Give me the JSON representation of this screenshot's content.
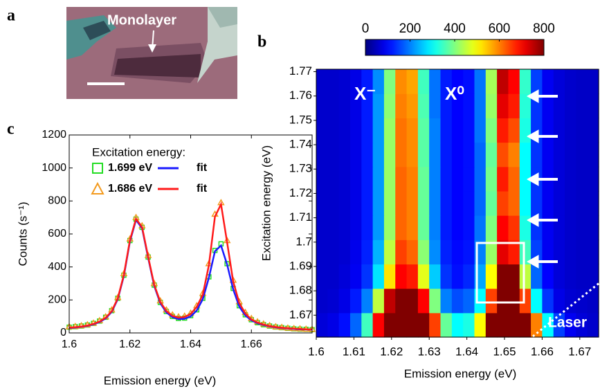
{
  "panel_labels": [
    "a",
    "b",
    "c"
  ],
  "micrograph": {
    "annotation": "Monolayer"
  },
  "chart_data": [
    {
      "type": "heatmap",
      "x_label": "Emission energy (eV)",
      "y_label": "Excitation energy (eV)",
      "xlim": [
        1.6,
        1.675
      ],
      "xticks": [
        1.6,
        1.61,
        1.62,
        1.63,
        1.64,
        1.65,
        1.66,
        1.67
      ],
      "ylim": [
        1.661,
        1.771
      ],
      "yticks": [
        1.67,
        1.68,
        1.69,
        1.7,
        1.71,
        1.72,
        1.73,
        1.74,
        1.75,
        1.76,
        1.77
      ],
      "x_edges": [
        1.6,
        1.603,
        1.606,
        1.609,
        1.612,
        1.615,
        1.618,
        1.621,
        1.624,
        1.627,
        1.63,
        1.633,
        1.636,
        1.639,
        1.642,
        1.645,
        1.648,
        1.651,
        1.654,
        1.657,
        1.66,
        1.663,
        1.666,
        1.669,
        1.672,
        1.675
      ],
      "y_edges": [
        1.661,
        1.671,
        1.681,
        1.691,
        1.701,
        1.711,
        1.721,
        1.731,
        1.741,
        1.751,
        1.761,
        1.771
      ],
      "values": [
        [
          70,
          80,
          110,
          180,
          350,
          700,
          900,
          950,
          950,
          900,
          650,
          380,
          300,
          320,
          500,
          850,
          950,
          950,
          900,
          600,
          300,
          150,
          90,
          70,
          60
        ],
        [
          60,
          65,
          80,
          120,
          200,
          450,
          750,
          900,
          900,
          700,
          400,
          200,
          160,
          180,
          300,
          650,
          900,
          900,
          650,
          300,
          140,
          80,
          65,
          60,
          55
        ],
        [
          60,
          60,
          70,
          90,
          140,
          280,
          520,
          700,
          680,
          480,
          260,
          140,
          110,
          130,
          230,
          500,
          820,
          800,
          450,
          180,
          100,
          70,
          60,
          55,
          55
        ],
        [
          60,
          60,
          65,
          85,
          125,
          240,
          450,
          650,
          620,
          410,
          210,
          125,
          105,
          115,
          200,
          420,
          720,
          680,
          350,
          150,
          90,
          70,
          60,
          55,
          55
        ],
        [
          60,
          60,
          65,
          80,
          120,
          220,
          420,
          620,
          600,
          380,
          200,
          120,
          100,
          110,
          190,
          400,
          700,
          660,
          320,
          140,
          90,
          70,
          60,
          55,
          55
        ],
        [
          60,
          60,
          65,
          80,
          120,
          220,
          420,
          620,
          600,
          380,
          200,
          120,
          100,
          110,
          180,
          380,
          650,
          620,
          300,
          140,
          90,
          70,
          60,
          55,
          55
        ],
        [
          60,
          60,
          65,
          80,
          120,
          220,
          420,
          620,
          600,
          380,
          200,
          120,
          100,
          110,
          180,
          390,
          680,
          620,
          300,
          140,
          90,
          70,
          60,
          55,
          55
        ],
        [
          60,
          60,
          65,
          80,
          120,
          220,
          420,
          610,
          590,
          370,
          200,
          120,
          100,
          110,
          180,
          380,
          640,
          600,
          300,
          140,
          90,
          70,
          60,
          55,
          55
        ],
        [
          60,
          60,
          65,
          80,
          120,
          220,
          420,
          610,
          590,
          370,
          200,
          120,
          100,
          110,
          190,
          400,
          680,
          640,
          320,
          140,
          90,
          70,
          60,
          55,
          55
        ],
        [
          60,
          60,
          65,
          80,
          120,
          220,
          410,
          600,
          580,
          360,
          190,
          120,
          100,
          110,
          190,
          420,
          720,
          680,
          330,
          140,
          90,
          70,
          60,
          55,
          55
        ],
        [
          60,
          60,
          65,
          80,
          120,
          210,
          400,
          590,
          570,
          350,
          190,
          120,
          100,
          110,
          190,
          430,
          750,
          700,
          340,
          150,
          90,
          70,
          60,
          55,
          55
        ]
      ],
      "colormap": "jet",
      "clim": [
        0,
        800
      ],
      "cticks": [
        0,
        200,
        400,
        600,
        800
      ],
      "annotations": [
        "X⁻",
        "X⁰",
        "Laser"
      ]
    },
    {
      "type": "line",
      "x_label": "Emission energy (eV)",
      "y_label": "Counts (s⁻¹)",
      "legend_title": "Excitation energy:",
      "xlim": [
        1.6,
        1.68
      ],
      "xticks": [
        1.6,
        1.62,
        1.64,
        1.66
      ],
      "ylim": [
        0,
        1200
      ],
      "yticks": [
        0,
        200,
        400,
        600,
        800,
        1000,
        1200
      ],
      "x": [
        1.6,
        1.602,
        1.604,
        1.606,
        1.608,
        1.61,
        1.612,
        1.614,
        1.616,
        1.618,
        1.62,
        1.622,
        1.624,
        1.626,
        1.628,
        1.63,
        1.632,
        1.634,
        1.636,
        1.638,
        1.64,
        1.642,
        1.644,
        1.646,
        1.648,
        1.65,
        1.652,
        1.654,
        1.656,
        1.658,
        1.66,
        1.662,
        1.664,
        1.666,
        1.668,
        1.67,
        1.672,
        1.674,
        1.676,
        1.678,
        1.68
      ],
      "series": [
        {
          "name": "1.699 eV",
          "color": "#22dd22",
          "marker": "square",
          "values": [
            35,
            38,
            42,
            48,
            58,
            72,
            95,
            135,
            210,
            350,
            560,
            690,
            640,
            460,
            290,
            185,
            130,
            100,
            88,
            90,
            105,
            140,
            210,
            340,
            500,
            540,
            420,
            270,
            165,
            110,
            80,
            62,
            50,
            42,
            36,
            32,
            28,
            25,
            23,
            22,
            20
          ]
        },
        {
          "name": "1.686 eV",
          "color": "#f39a1e",
          "marker": "triangle",
          "values": [
            38,
            40,
            44,
            50,
            60,
            75,
            98,
            140,
            215,
            360,
            570,
            700,
            650,
            470,
            300,
            195,
            140,
            110,
            98,
            102,
            120,
            165,
            240,
            420,
            720,
            790,
            560,
            320,
            190,
            125,
            88,
            68,
            55,
            45,
            38,
            34,
            30,
            27,
            25,
            23,
            22
          ]
        },
        {
          "name": "fit",
          "color": "#1a1aff",
          "marker": "line",
          "values": [
            30,
            33,
            37,
            43,
            52,
            66,
            88,
            128,
            205,
            345,
            555,
            685,
            635,
            455,
            285,
            180,
            125,
            96,
            84,
            86,
            100,
            136,
            205,
            335,
            495,
            530,
            415,
            265,
            160,
            106,
            77,
            59,
            48,
            40,
            34,
            30,
            27,
            24,
            22,
            21,
            20
          ]
        },
        {
          "name": "fit",
          "color": "#ff1a1a",
          "marker": "line",
          "values": [
            32,
            35,
            39,
            45,
            55,
            69,
            92,
            132,
            210,
            352,
            562,
            692,
            642,
            462,
            292,
            188,
            133,
            104,
            93,
            97,
            115,
            158,
            232,
            410,
            705,
            780,
            550,
            312,
            182,
            118,
            82,
            63,
            51,
            42,
            36,
            32,
            29,
            26,
            24,
            22,
            21
          ]
        }
      ]
    }
  ]
}
